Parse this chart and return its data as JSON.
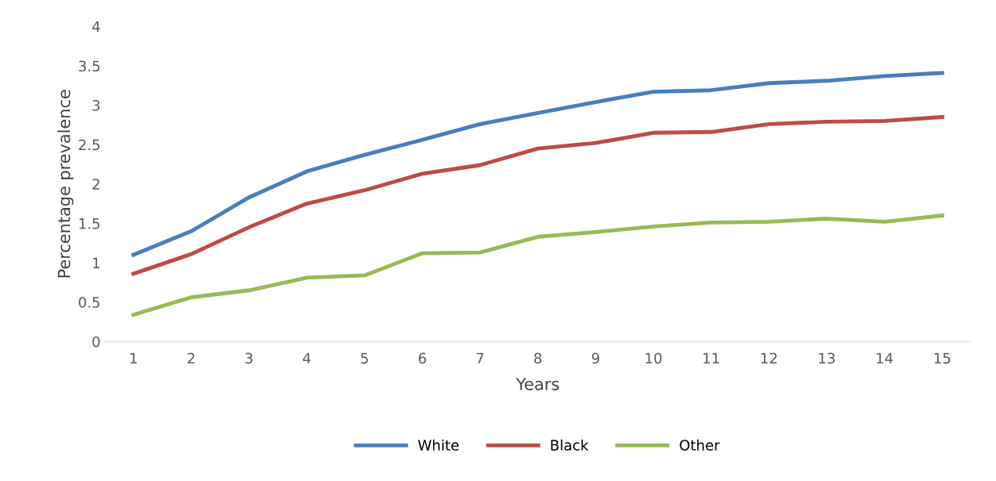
{
  "chart_data": {
    "type": "line",
    "xlabel": "Years",
    "ylabel": "Percentage prevalence",
    "categories": [
      "1",
      "2",
      "3",
      "4",
      "5",
      "6",
      "7",
      "8",
      "9",
      "10",
      "11",
      "12",
      "13",
      "14",
      "15"
    ],
    "series": [
      {
        "name": "White",
        "color": "#4a7ebb",
        "values": [
          1.1,
          1.4,
          1.83,
          2.16,
          2.37,
          2.56,
          2.76,
          2.9,
          3.04,
          3.17,
          3.19,
          3.28,
          3.31,
          3.37,
          3.41
        ]
      },
      {
        "name": "Black",
        "color": "#be4b48",
        "values": [
          0.86,
          1.11,
          1.45,
          1.75,
          1.92,
          2.13,
          2.24,
          2.45,
          2.52,
          2.65,
          2.66,
          2.76,
          2.79,
          2.8,
          2.85
        ]
      },
      {
        "name": "Other",
        "color": "#98b954",
        "values": [
          0.34,
          0.56,
          0.65,
          0.81,
          0.84,
          1.12,
          1.13,
          1.33,
          1.39,
          1.46,
          1.51,
          1.52,
          1.56,
          1.52,
          1.6
        ]
      }
    ],
    "ylim": [
      0,
      4
    ],
    "yticks": [
      0,
      0.5,
      1,
      1.5,
      2,
      2.5,
      3,
      3.5,
      4
    ],
    "grid": false,
    "legend": "bottom",
    "marker": "none",
    "line_style": "solid"
  }
}
